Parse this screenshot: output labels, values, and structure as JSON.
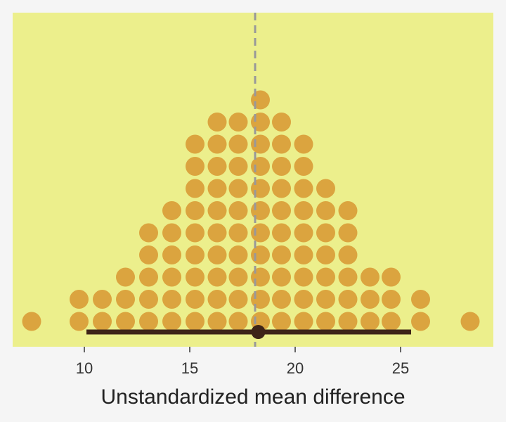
{
  "chart_data": {
    "type": "dotplot",
    "title": "",
    "xlabel": "Unstandardized mean difference",
    "ylabel": "",
    "xlim": [
      6.6,
      29.4
    ],
    "xticks": [
      10,
      15,
      20,
      25
    ],
    "x_tick_labels": [
      "10",
      "15",
      "20",
      "25"
    ],
    "grid": false,
    "legend": "none",
    "reference_line": {
      "x": 18.1,
      "style": "dashed"
    },
    "interval": {
      "low": 10.1,
      "high": 25.5,
      "point": 18.25
    },
    "columns": [
      {
        "x": 7.5,
        "count": 1
      },
      {
        "x": 9.75,
        "count": 2
      },
      {
        "x": 10.85,
        "count": 2
      },
      {
        "x": 11.95,
        "count": 3
      },
      {
        "x": 13.05,
        "count": 5
      },
      {
        "x": 14.15,
        "count": 6
      },
      {
        "x": 15.25,
        "count": 9
      },
      {
        "x": 16.3,
        "count": 10
      },
      {
        "x": 17.3,
        "count": 10
      },
      {
        "x": 18.35,
        "count": 11
      },
      {
        "x": 19.35,
        "count": 10
      },
      {
        "x": 20.4,
        "count": 9
      },
      {
        "x": 21.45,
        "count": 7
      },
      {
        "x": 22.5,
        "count": 6
      },
      {
        "x": 23.55,
        "count": 3
      },
      {
        "x": 24.55,
        "count": 3
      },
      {
        "x": 25.95,
        "count": 2
      },
      {
        "x": 28.3,
        "count": 1
      }
    ],
    "colors": {
      "panel_background": "#ecef8c",
      "page_background": "#f5f5f5",
      "dot_fill": "#dba43f",
      "interval": "#3e2418",
      "reference_line": "#999999"
    }
  }
}
